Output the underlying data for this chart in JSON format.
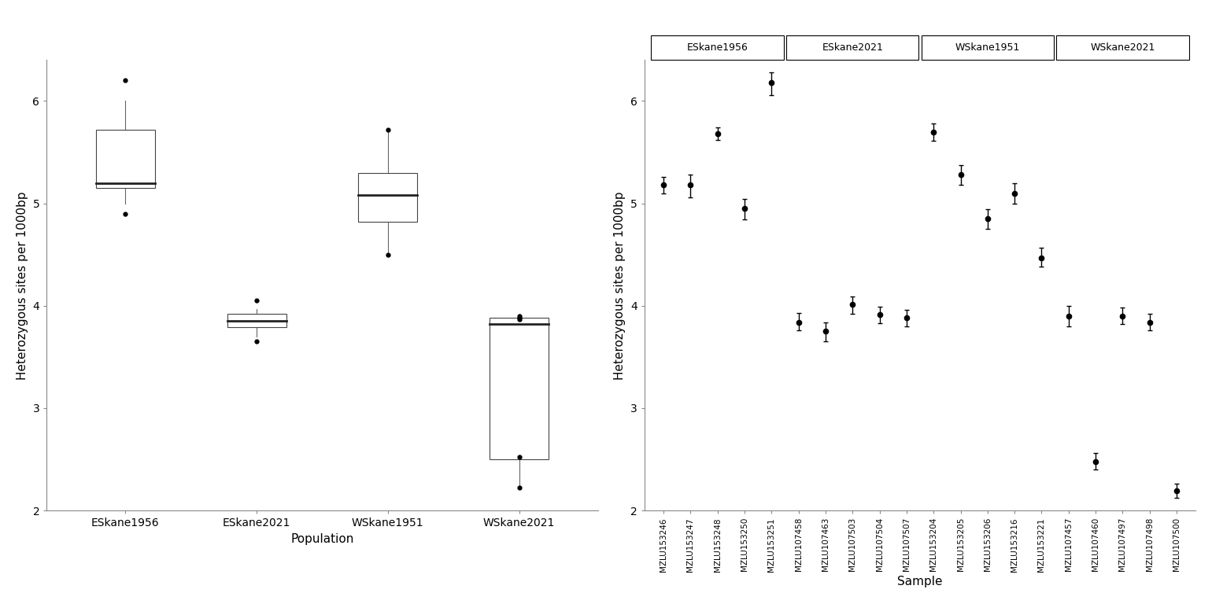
{
  "boxplot": {
    "populations": [
      "ESkane1956",
      "ESkane2021",
      "WSkane1951",
      "WSkane2021"
    ],
    "data": {
      "ESkane1956": {
        "median": 5.2,
        "q1": 5.15,
        "q3": 5.72,
        "whisker_low": 5.0,
        "whisker_high": 6.0,
        "outliers": [
          6.2,
          4.9
        ]
      },
      "ESkane2021": {
        "median": 3.85,
        "q1": 3.79,
        "q3": 3.92,
        "whisker_low": 3.7,
        "whisker_high": 3.97,
        "outliers": [
          4.05,
          3.65
        ]
      },
      "WSkane1951": {
        "median": 5.08,
        "q1": 4.82,
        "q3": 5.3,
        "whisker_low": 4.5,
        "whisker_high": 5.72,
        "outliers": [
          5.72,
          4.5
        ]
      },
      "WSkane2021": {
        "median": 3.82,
        "q1": 2.5,
        "q3": 3.88,
        "whisker_low": 2.22,
        "whisker_high": 3.92,
        "outliers": [
          3.87,
          3.88,
          3.9,
          2.52,
          2.22
        ]
      }
    },
    "ylabel": "Heterozygous sites per 1000bp",
    "xlabel": "Population",
    "ylim": [
      2.0,
      6.4
    ]
  },
  "dotplot": {
    "groups": {
      "ESkane1956": [
        "MZLU153246",
        "MZLU153247",
        "MZLU153248",
        "MZLU153250",
        "MZLU153251"
      ],
      "ESkane2021": [
        "MZLU107458",
        "MZLU107463",
        "MZLU107503",
        "MZLU107504",
        "MZLU107507"
      ],
      "WSkane1951": [
        "MZLU153204",
        "MZLU153205",
        "MZLU153206",
        "MZLU153216",
        "MZLU153221"
      ],
      "WSkane2021": [
        "MZLU107457",
        "MZLU107460",
        "MZLU107497",
        "MZLU107498",
        "MZLU107500"
      ]
    },
    "values": {
      "MZLU153246": [
        5.18,
        5.1,
        5.26
      ],
      "MZLU153247": [
        5.18,
        5.06,
        5.28
      ],
      "MZLU153248": [
        5.68,
        5.62,
        5.74
      ],
      "MZLU153250": [
        4.95,
        4.84,
        5.04
      ],
      "MZLU153251": [
        6.18,
        6.06,
        6.28
      ],
      "MZLU107458": [
        3.84,
        3.76,
        3.93
      ],
      "MZLU107463": [
        3.75,
        3.65,
        3.84
      ],
      "MZLU107503": [
        4.01,
        3.92,
        4.09
      ],
      "MZLU107504": [
        3.91,
        3.83,
        3.99
      ],
      "MZLU107507": [
        3.88,
        3.8,
        3.96
      ],
      "MZLU153204": [
        5.7,
        5.61,
        5.78
      ],
      "MZLU153205": [
        5.28,
        5.18,
        5.37
      ],
      "MZLU153206": [
        4.85,
        4.75,
        4.94
      ],
      "MZLU153216": [
        5.1,
        5.0,
        5.2
      ],
      "MZLU153221": [
        4.47,
        4.38,
        4.57
      ],
      "MZLU107457": [
        3.9,
        3.8,
        4.0
      ],
      "MZLU107460": [
        2.48,
        2.4,
        2.56
      ],
      "MZLU107497": [
        3.9,
        3.82,
        3.98
      ],
      "MZLU107498": [
        3.84,
        3.76,
        3.92
      ],
      "MZLU107500": [
        2.19,
        2.12,
        2.26
      ]
    },
    "ylabel": "Heterozygous sites per 1000bp",
    "xlabel": "Sample",
    "ylim": [
      2.0,
      6.4
    ]
  },
  "background_color": "#ffffff",
  "text_color": "#000000"
}
